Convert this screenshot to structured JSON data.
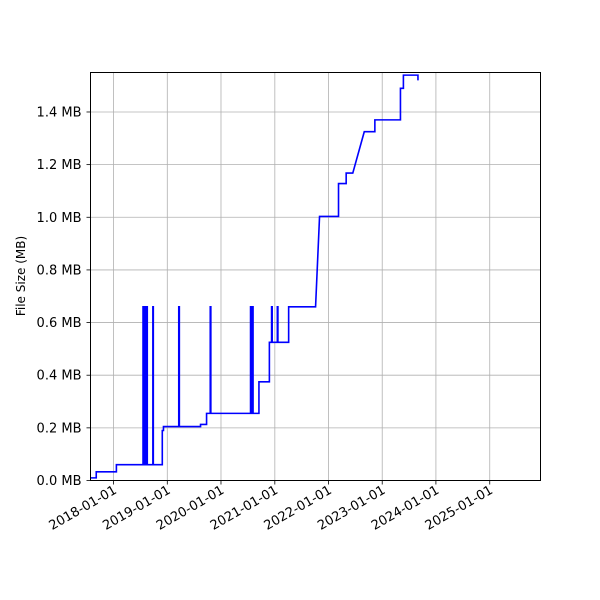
{
  "chart_data": {
    "type": "line",
    "ylabel": "File Size (MB)",
    "xlim": [
      "2017-07-28",
      "2025-12-12"
    ],
    "ylim": [
      0,
      1.55
    ],
    "x_ticks": [
      "2018-01-01",
      "2019-01-01",
      "2020-01-01",
      "2021-01-01",
      "2022-01-01",
      "2023-01-01",
      "2024-01-01",
      "2025-01-01"
    ],
    "y_ticks": [
      0.0,
      0.2,
      0.4,
      0.6,
      0.8,
      1.0,
      1.2,
      1.4
    ],
    "y_tick_labels": [
      "0.0 MB",
      "0.2 MB",
      "0.4 MB",
      "0.6 MB",
      "0.8 MB",
      "1.0 MB",
      "1.2 MB",
      "1.4 MB"
    ],
    "grid": true,
    "series": [
      {
        "color": "#0000ff",
        "points": [
          [
            "2017-07-28",
            0.01
          ],
          [
            "2017-09-05",
            0.01
          ],
          [
            "2017-09-05",
            0.033
          ],
          [
            "2018-01-20",
            0.033
          ],
          [
            "2018-01-20",
            0.06
          ],
          [
            "2018-07-20",
            0.06
          ],
          [
            "2018-07-20",
            0.66
          ],
          [
            "2018-07-24",
            0.66
          ],
          [
            "2018-07-24",
            0.06
          ],
          [
            "2018-07-30",
            0.06
          ],
          [
            "2018-07-30",
            0.66
          ],
          [
            "2018-08-03",
            0.66
          ],
          [
            "2018-08-03",
            0.06
          ],
          [
            "2018-08-09",
            0.06
          ],
          [
            "2018-08-09",
            0.66
          ],
          [
            "2018-08-18",
            0.66
          ],
          [
            "2018-08-18",
            0.06
          ],
          [
            "2018-09-25",
            0.06
          ],
          [
            "2018-09-25",
            0.66
          ],
          [
            "2018-09-28",
            0.66
          ],
          [
            "2018-09-28",
            0.06
          ],
          [
            "2018-11-28",
            0.06
          ],
          [
            "2018-11-28",
            0.19
          ],
          [
            "2018-12-06",
            0.19
          ],
          [
            "2018-12-06",
            0.205
          ],
          [
            "2019-03-20",
            0.205
          ],
          [
            "2019-03-20",
            0.66
          ],
          [
            "2019-03-24",
            0.66
          ],
          [
            "2019-03-24",
            0.205
          ],
          [
            "2019-08-15",
            0.205
          ],
          [
            "2019-08-15",
            0.213
          ],
          [
            "2019-09-25",
            0.213
          ],
          [
            "2019-09-25",
            0.255
          ],
          [
            "2019-10-20",
            0.255
          ],
          [
            "2019-10-20",
            0.66
          ],
          [
            "2019-10-24",
            0.66
          ],
          [
            "2019-10-24",
            0.255
          ],
          [
            "2020-07-20",
            0.255
          ],
          [
            "2020-07-20",
            0.66
          ],
          [
            "2020-07-24",
            0.66
          ],
          [
            "2020-07-24",
            0.255
          ],
          [
            "2020-08-02",
            0.255
          ],
          [
            "2020-08-02",
            0.66
          ],
          [
            "2020-08-06",
            0.66
          ],
          [
            "2020-08-06",
            0.255
          ],
          [
            "2020-09-15",
            0.255
          ],
          [
            "2020-09-15",
            0.375
          ],
          [
            "2020-11-25",
            0.375
          ],
          [
            "2020-11-25",
            0.525
          ],
          [
            "2020-12-10",
            0.525
          ],
          [
            "2020-12-10",
            0.66
          ],
          [
            "2020-12-14",
            0.66
          ],
          [
            "2020-12-14",
            0.525
          ],
          [
            "2021-01-18",
            0.525
          ],
          [
            "2021-01-18",
            0.66
          ],
          [
            "2021-01-22",
            0.66
          ],
          [
            "2021-01-22",
            0.525
          ],
          [
            "2021-04-05",
            0.525
          ],
          [
            "2021-04-05",
            0.66
          ],
          [
            "2021-10-05",
            0.66
          ],
          [
            "2021-11-01",
            1.003
          ],
          [
            "2022-03-10",
            1.003
          ],
          [
            "2022-03-10",
            1.128
          ],
          [
            "2022-05-01",
            1.128
          ],
          [
            "2022-05-01",
            1.168
          ],
          [
            "2022-06-15",
            1.168
          ],
          [
            "2022-09-01",
            1.325
          ],
          [
            "2022-11-12",
            1.325
          ],
          [
            "2022-11-12",
            1.37
          ],
          [
            "2023-05-05",
            1.37
          ],
          [
            "2023-05-05",
            1.49
          ],
          [
            "2023-05-25",
            1.49
          ],
          [
            "2023-05-25",
            1.54
          ],
          [
            "2023-09-01",
            1.54
          ],
          [
            "2023-09-01",
            1.52
          ]
        ]
      }
    ]
  }
}
